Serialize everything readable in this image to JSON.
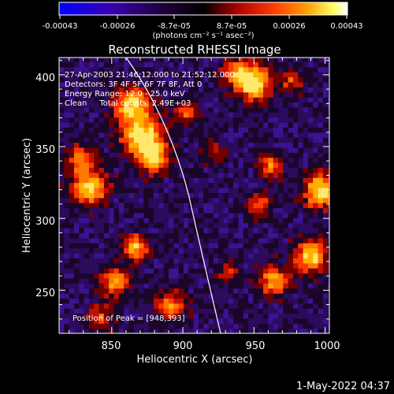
{
  "colorbar": {
    "ticks": [
      "-0.00043",
      "-0.00026",
      "-8.7e-05",
      "8.7e-05",
      "0.00026",
      "0.00043"
    ],
    "units": "(photons cm⁻² s⁻¹ asec⁻²)",
    "colors": [
      "#0000ff",
      "#3a00b0",
      "#1a0030",
      "#000000",
      "#b00000",
      "#ff4000",
      "#ffa000",
      "#ffff60",
      "#ffffff"
    ]
  },
  "chart_data": {
    "type": "heatmap",
    "title": "Reconstructed RHESSI Image",
    "xlabel": "Heliocentric X (arcsec)",
    "ylabel": "Heliocentric Y (arcsec)",
    "xlim": [
      813,
      1003
    ],
    "ylim": [
      220,
      412
    ],
    "xticks": [
      "850",
      "900",
      "950",
      "1000"
    ],
    "yticks": [
      "250",
      "300",
      "350",
      "400"
    ],
    "annotations": [
      "27-Apr-2003 21:46:12.000 to 21:52:12.000",
      "Detectors: 3F 4F 5F 6F 7F 8F, Att 0",
      "Energy Range: 12.0 - 25.0 keV",
      "Clean     Total counts: 2.49E+03",
      "Position of Peak = [948,393]"
    ],
    "peak": [
      948,
      393
    ],
    "limb_color": "#ffffff"
  },
  "footer": {
    "timestamp": "1-May-2022 04:37"
  }
}
